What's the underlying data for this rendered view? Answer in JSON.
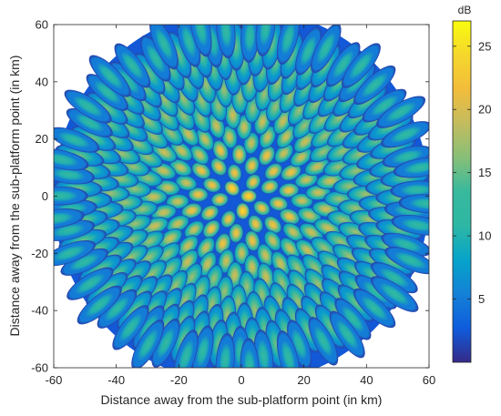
{
  "chart_data": {
    "type": "heatmap",
    "title": "",
    "xlabel": "Distance away from the sub-platform point (in km)",
    "ylabel": "Distance away from the sub-platform point (in km)",
    "xlim": [
      -60,
      60
    ],
    "ylim": [
      -60,
      60
    ],
    "x_ticks": [
      -60,
      -40,
      -20,
      0,
      20,
      40,
      60
    ],
    "y_ticks": [
      -60,
      -40,
      -20,
      0,
      20,
      40,
      60
    ],
    "x_tick_labels": [
      "-60",
      "-40",
      "-20",
      "0",
      "20",
      "40",
      "60"
    ],
    "y_tick_labels": [
      "-60",
      "-40",
      "-20",
      "0",
      "20",
      "40",
      "60"
    ],
    "coverage_radius_km": 60,
    "colorbar": {
      "label": "dB",
      "colormap": "parula",
      "range": [
        0,
        27
      ],
      "ticks": [
        5,
        10,
        15,
        20,
        25
      ],
      "tick_labels": [
        "5",
        "10",
        "15",
        "20",
        "25"
      ]
    },
    "beam_layout": {
      "pattern": "sunflower (concentric rings of spot beams)",
      "peak_db_center": 25,
      "peak_db_edge": 13,
      "min_db_between_beams": 1
    },
    "grid": false,
    "colors": {
      "axes": "#262626",
      "background_outside": "#ffffff"
    }
  }
}
